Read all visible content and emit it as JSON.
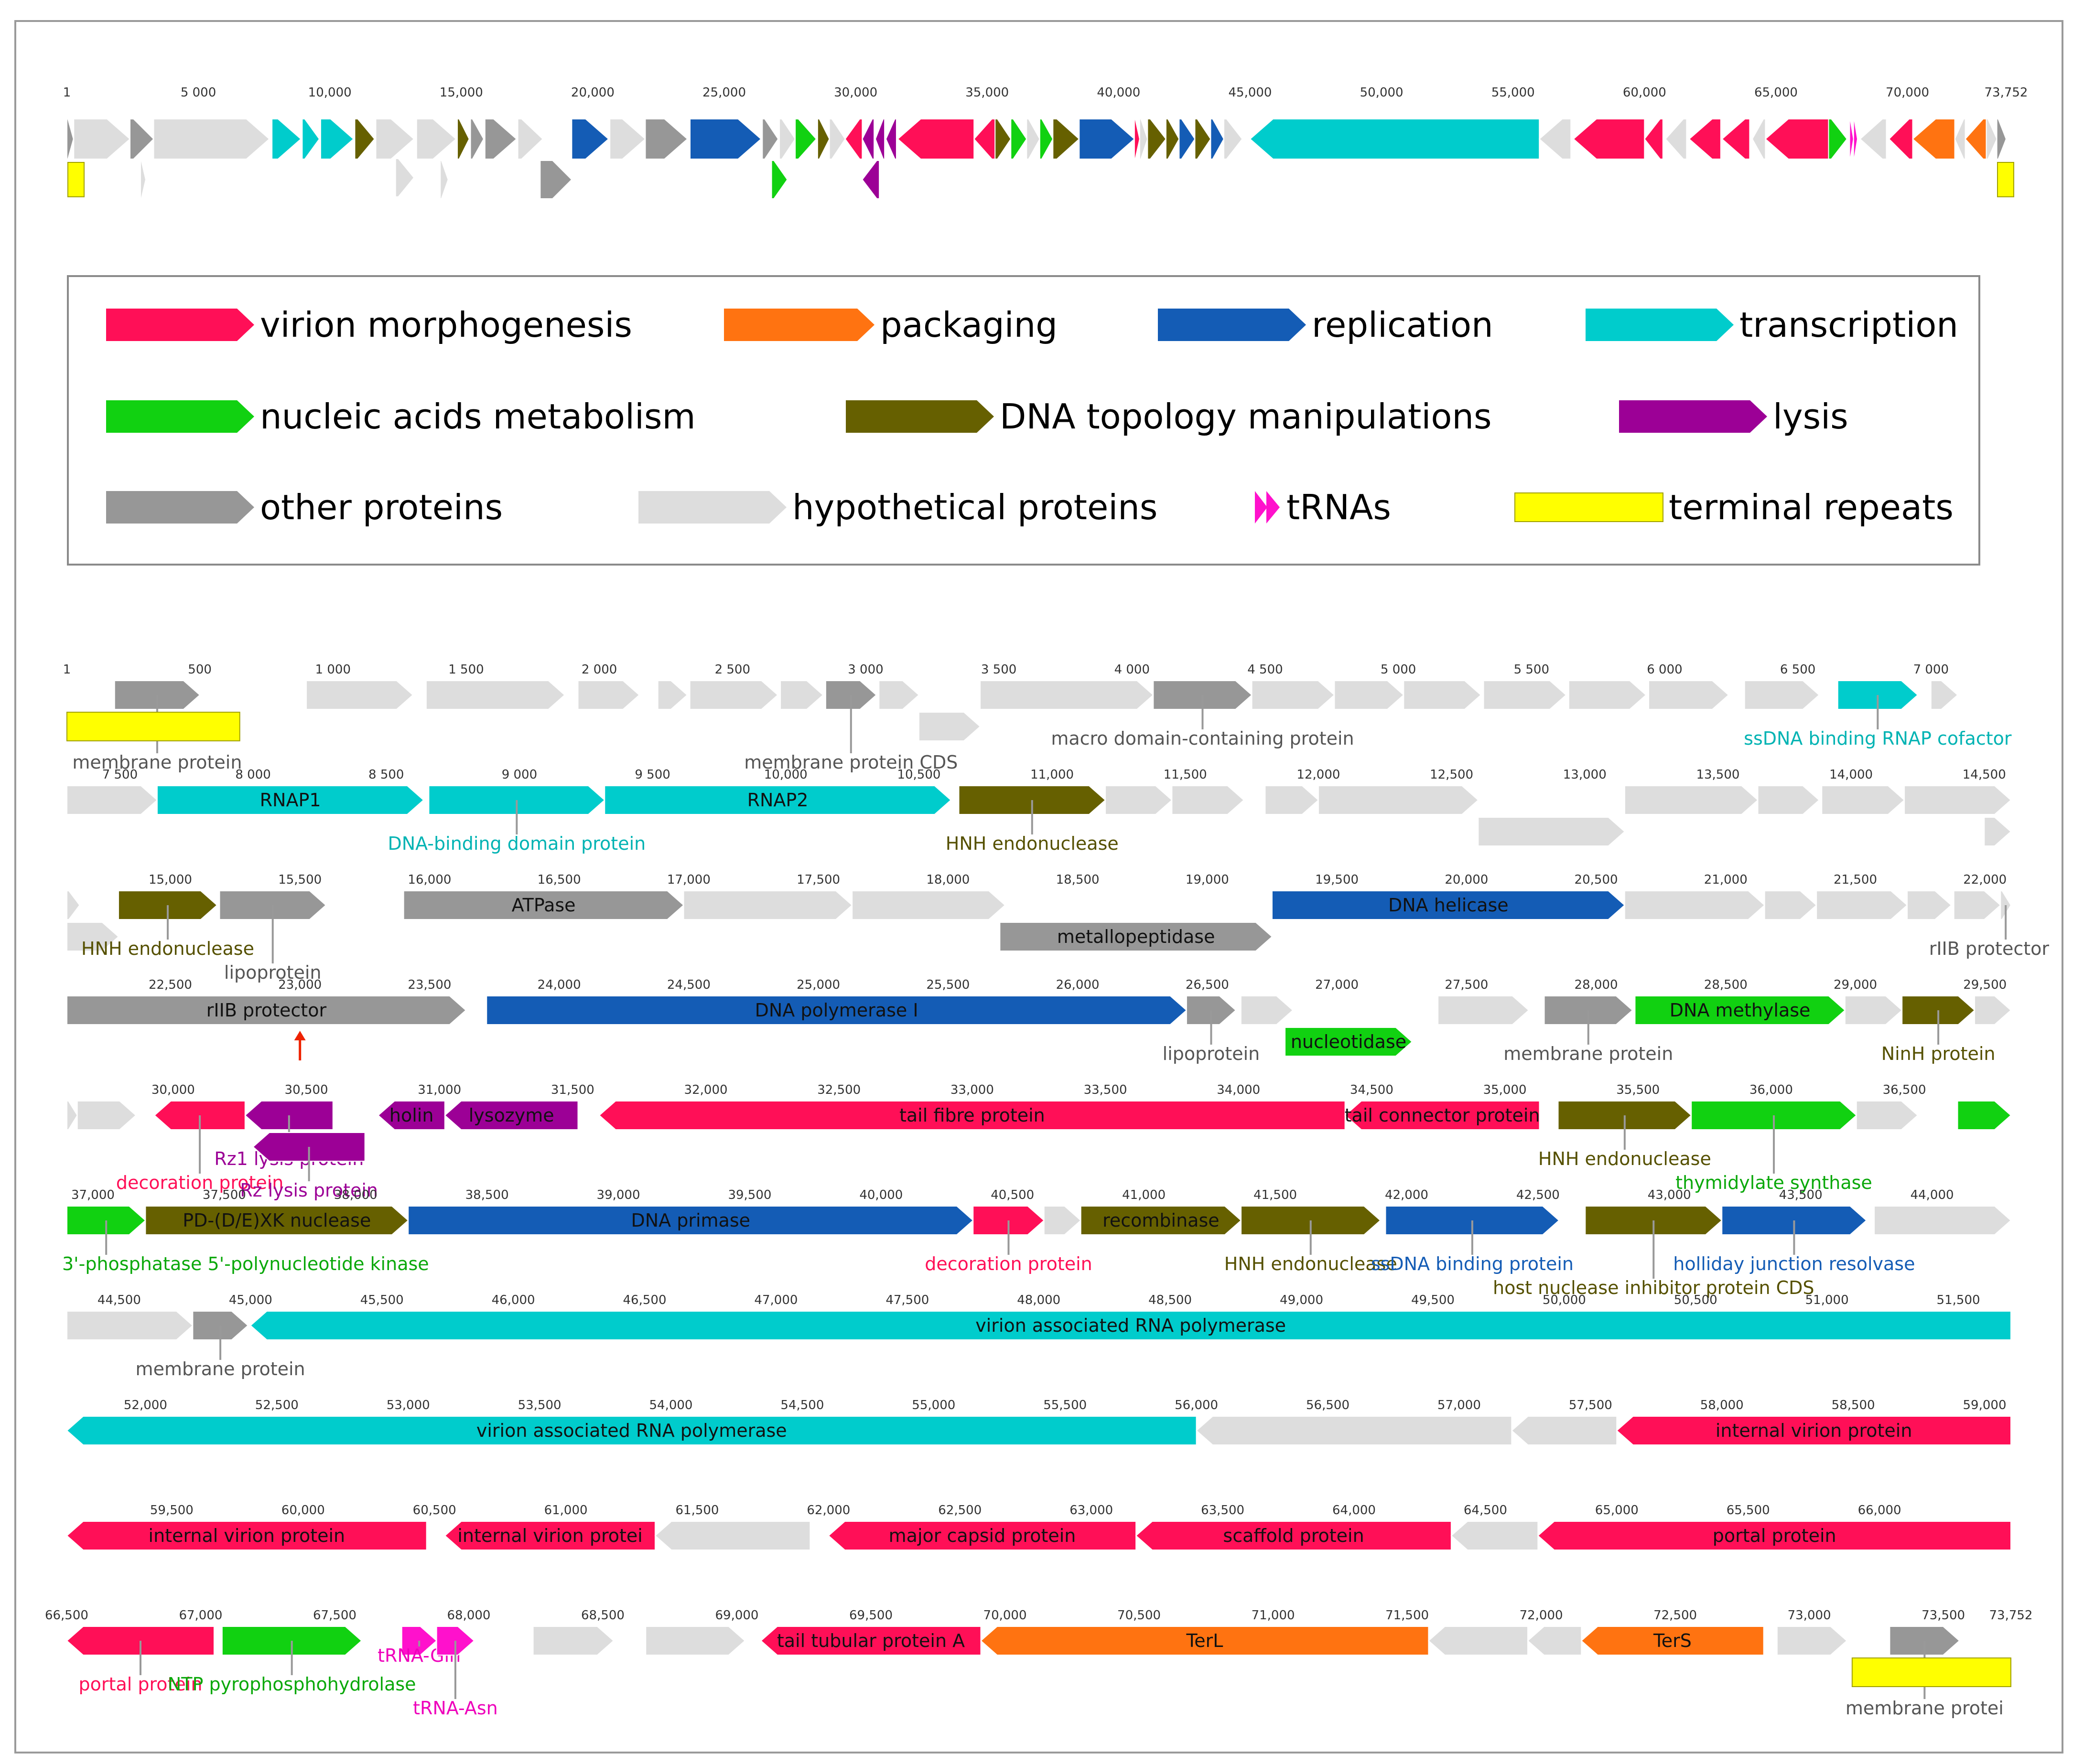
{
  "figure": {
    "genome_length": 73752,
    "overview_ticks": [
      "1",
      "5 000",
      "10,000",
      "15,000",
      "20,000",
      "25,000",
      "30,000",
      "35,000",
      "40,000",
      "45,000",
      "50,000",
      "55,000",
      "60,000",
      "65,000",
      "70,000",
      "73,752"
    ],
    "row_ticks": [
      [
        "1",
        "500",
        "1 000",
        "1 500",
        "2 000",
        "2 500",
        "3 000",
        "3 500",
        "4 000",
        "4 500",
        "5 000",
        "5 500",
        "6 000",
        "6 500",
        "7 000"
      ],
      [
        "7 500",
        "8 000",
        "8 500",
        "9 000",
        "9 500",
        "10,000",
        "10,500",
        "11,000",
        "11,500",
        "12,000",
        "12,500",
        "13,000",
        "13,500",
        "14,000",
        "14,500"
      ],
      [
        "15,000",
        "15,500",
        "16,000",
        "16,500",
        "17,000",
        "17,500",
        "18,000",
        "18,500",
        "19,000",
        "19,500",
        "20,000",
        "20,500",
        "21,000",
        "21,500",
        "22,000"
      ],
      [
        "22,500",
        "23,000",
        "23,500",
        "24,000",
        "24,500",
        "25,000",
        "25,500",
        "26,000",
        "26,500",
        "27,000",
        "27,500",
        "28,000",
        "28,500",
        "29,000",
        "29,500"
      ],
      [
        "30,000",
        "30,500",
        "31,000",
        "31,500",
        "32,000",
        "32,500",
        "33,000",
        "33,500",
        "34,000",
        "34,500",
        "35,000",
        "35,500",
        "36,000",
        "36,500"
      ],
      [
        "37,000",
        "37,500",
        "38,000",
        "38,500",
        "39,000",
        "39,500",
        "40,000",
        "40,500",
        "41,000",
        "41,500",
        "42,000",
        "42,500",
        "43,000",
        "43,500",
        "44,000"
      ],
      [
        "44,500",
        "45,000",
        "45,500",
        "46,000",
        "46,500",
        "47,000",
        "47,500",
        "48,000",
        "48,500",
        "49,000",
        "49,500",
        "50,000",
        "50,500",
        "51,000",
        "51,500"
      ],
      [
        "52,000",
        "52,500",
        "53,000",
        "53,500",
        "54,000",
        "54,500",
        "55,000",
        "55,500",
        "56,000",
        "56,500",
        "57,000",
        "57,500",
        "58,000",
        "58,500",
        "59,000"
      ],
      [
        "59,500",
        "60,000",
        "60,500",
        "61,000",
        "61,500",
        "62,000",
        "62,500",
        "63,000",
        "63,500",
        "64,000",
        "64,500",
        "65,000",
        "65,500",
        "66,000"
      ],
      [
        "66,500",
        "67,000",
        "67,500",
        "68,000",
        "68,500",
        "69,000",
        "69,500",
        "70,000",
        "70,500",
        "71,000",
        "71,500",
        "72,000",
        "72,500",
        "73,000",
        "73,500",
        "73,752"
      ]
    ]
  },
  "legend": [
    {
      "category": "virion",
      "label": "virion morphogenesis",
      "color": "#ff0f57"
    },
    {
      "category": "packaging",
      "label": "packaging",
      "color": "#ff7311"
    },
    {
      "category": "replication",
      "label": "replication",
      "color": "#145cb5"
    },
    {
      "category": "transcription",
      "label": "transcription",
      "color": "#00cccc"
    },
    {
      "category": "nucleic",
      "label": "nucleic acids metabolism",
      "color": "#11d111"
    },
    {
      "category": "topology",
      "label": "DNA topology manipulations",
      "color": "#666000"
    },
    {
      "category": "lysis",
      "label": "lysis",
      "color": "#9c0096"
    },
    {
      "category": "other",
      "label": "other proteins",
      "color": "#979797"
    },
    {
      "category": "hypothetical",
      "label": "hypothetical proteins",
      "color": "#dddddd"
    },
    {
      "category": "trna",
      "label": "tRNAs",
      "color": "#ff11cc"
    },
    {
      "category": "repeat",
      "label": "terminal repeats",
      "color": "#ffff00"
    }
  ],
  "gene_labels": {
    "membrane_protein": "membrane protein",
    "membrane_protein_cds": "membrane protein CDS",
    "macro_domain": "macro domain-containing protein",
    "ssdna_rnap_cofactor": "ssDNA binding RNAP cofactor",
    "rnap1": "RNAP1",
    "rnap2": "RNAP2",
    "dna_binding_domain": "DNA-binding domain protein",
    "hnh_endonuclease": "HNH endonuclease",
    "lipoprotein": "lipoprotein",
    "atpase": "ATPase",
    "metallopeptidase": "metallopeptidase",
    "dna_helicase": "DNA helicase",
    "riib_protector": "rIIB protector",
    "dna_polymerase": "DNA polymerase I",
    "nucleotidase": "nucleotidase",
    "dna_methylase": "DNA methylase",
    "ninh": "NinH protein",
    "holin": "holin",
    "lysozyme": "lysozyme",
    "rz1": "Rz1 lysis protein",
    "rz": "Rz lysis protein",
    "decoration_protein": "decoration protein",
    "tail_fibre": "tail fibre protein",
    "tail_connector": "tail connector protein",
    "thymidylate_synthase": "thymidylate synthase",
    "pdexk_nuclease": "PD-(D/E)XK nuclease",
    "kinase": "3'-phosphatase 5'-polynucleotide kinase",
    "dna_primase": "DNA primase",
    "recombinase": "recombinase",
    "ssdna_binding": "ssDNA binding protein",
    "holliday": "holliday junction resolvase",
    "host_nuclease_inhibitor": "host nuclease inhibitor protein CDS",
    "virion_rnap": "virion associated RNA polymerase",
    "internal_virion": "internal virion protein",
    "internal_virion_cut": "internal virion protei",
    "major_capsid": "major capsid protein",
    "scaffold": "scaffold protein",
    "portal": "portal protein",
    "ntp_pyrophosphohydrolase": "NTP pyrophosphohydrolase",
    "trna_gln": "tRNA-Gln",
    "trna_asn": "tRNA-Asn",
    "tail_tubular_a": "tail tubular protein A",
    "terl": "TerL",
    "ters": "TerS",
    "membrane_protein_cut": "membrane protei"
  }
}
